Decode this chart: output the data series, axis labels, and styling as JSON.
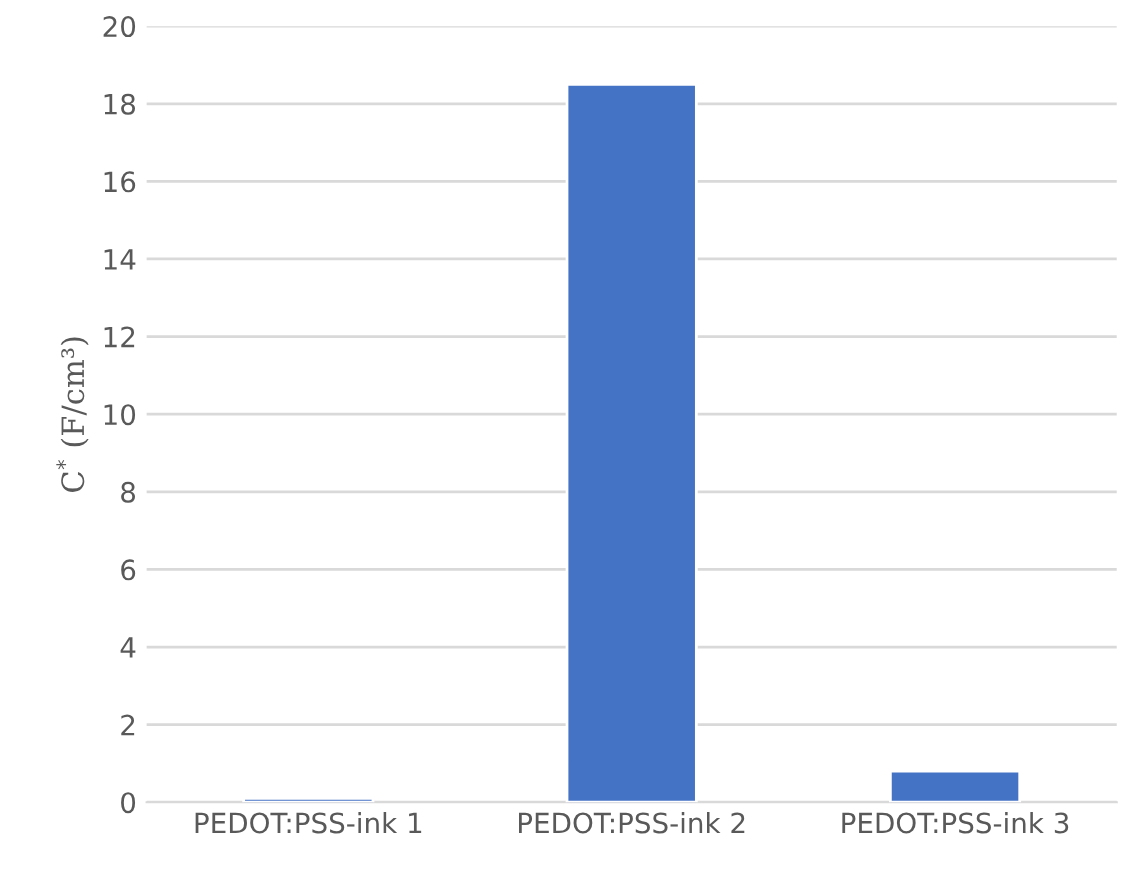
{
  "chart_data": {
    "type": "bar",
    "ylabel": "C$^{*}$ (F/cm³)",
    "categories": [
      "PEDOT:PSS-ink 1",
      "PEDOT:PSS-ink 2",
      "PEDOT:PSS-ink 3"
    ],
    "values": [
      0.1,
      18.5,
      0.8
    ],
    "color": "#4472c4",
    "ylim": [
      0,
      20
    ],
    "yticks": [
      0,
      2,
      4,
      6,
      8,
      10,
      12,
      14,
      16,
      18,
      20
    ],
    "grid": "y"
  }
}
